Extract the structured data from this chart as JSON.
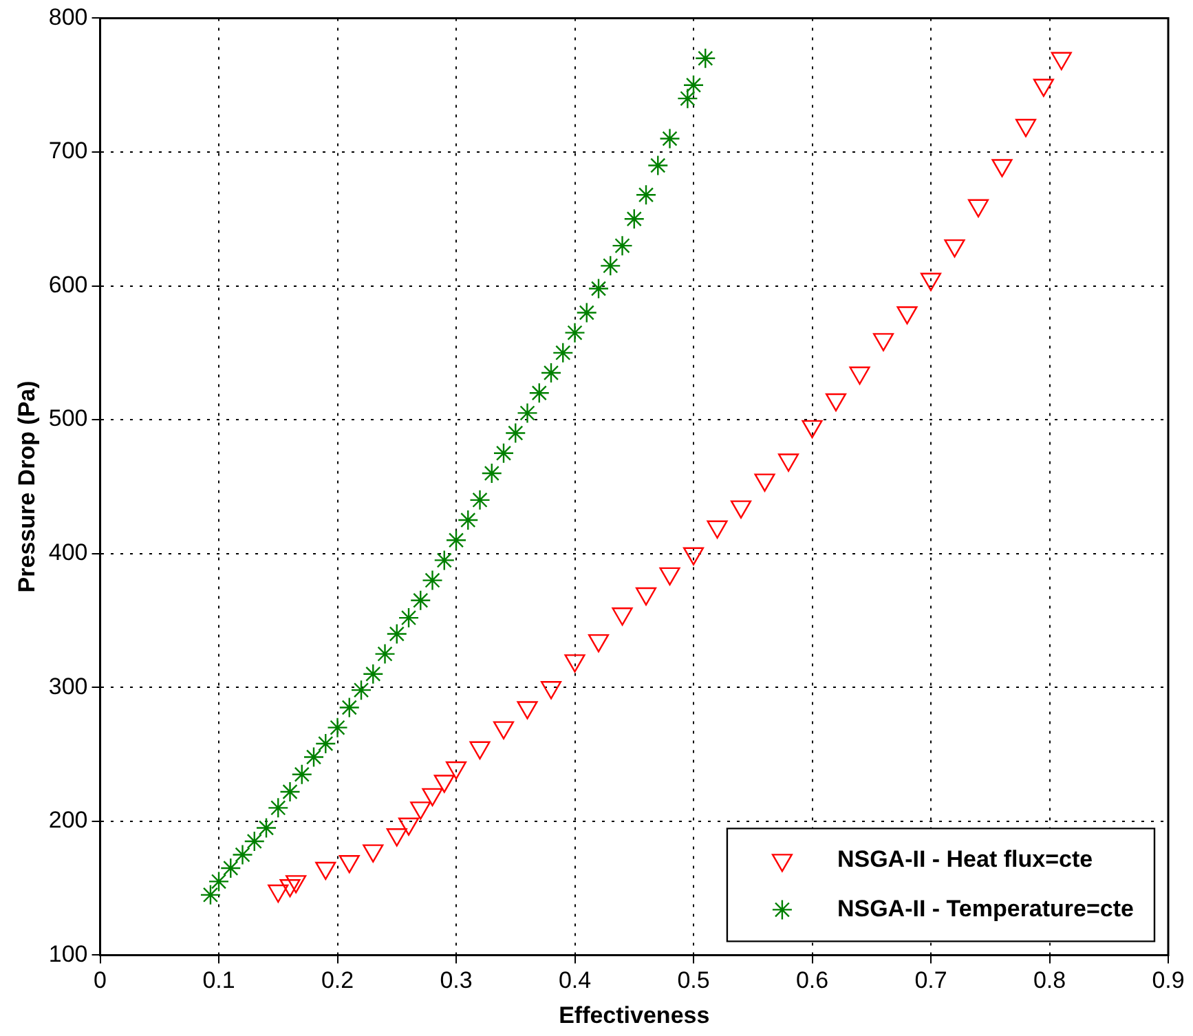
{
  "chart_data": {
    "type": "scatter",
    "xlabel": "Effectiveness",
    "ylabel": "Pressure Drop (Pa)",
    "xlim": [
      0,
      0.9
    ],
    "xticks": [
      0,
      0.1,
      0.2,
      0.3,
      0.4,
      0.5,
      0.6,
      0.7,
      0.8,
      0.9
    ],
    "ylim": [
      100,
      800
    ],
    "yticks": [
      100,
      200,
      300,
      400,
      500,
      600,
      700,
      800
    ],
    "grid": true,
    "legend": "bottom right",
    "series": [
      {
        "name": "NSGA-II - Heat flux=cte",
        "color": "#ff0000",
        "marker": "triangle",
        "x": [
          0.15,
          0.16,
          0.165,
          0.19,
          0.21,
          0.23,
          0.25,
          0.26,
          0.27,
          0.28,
          0.29,
          0.3,
          0.32,
          0.34,
          0.36,
          0.38,
          0.4,
          0.42,
          0.44,
          0.46,
          0.48,
          0.5,
          0.52,
          0.54,
          0.56,
          0.58,
          0.6,
          0.62,
          0.64,
          0.66,
          0.68,
          0.7,
          0.72,
          0.74,
          0.76,
          0.78,
          0.795,
          0.81
        ],
        "values": [
          148,
          152,
          155,
          165,
          170,
          178,
          190,
          198,
          210,
          220,
          230,
          240,
          255,
          270,
          285,
          300,
          320,
          335,
          355,
          370,
          385,
          400,
          420,
          435,
          455,
          470,
          495,
          515,
          535,
          560,
          580,
          605,
          630,
          660,
          690,
          720,
          750,
          770
        ]
      },
      {
        "name": "NSGA-II - Temperature=cte",
        "color": "#008000",
        "marker": "cross",
        "x": [
          0.093,
          0.1,
          0.11,
          0.12,
          0.13,
          0.14,
          0.15,
          0.16,
          0.17,
          0.18,
          0.19,
          0.2,
          0.21,
          0.22,
          0.23,
          0.24,
          0.25,
          0.26,
          0.27,
          0.28,
          0.29,
          0.3,
          0.31,
          0.32,
          0.33,
          0.34,
          0.35,
          0.36,
          0.37,
          0.38,
          0.39,
          0.4,
          0.41,
          0.42,
          0.43,
          0.44,
          0.45,
          0.46,
          0.47,
          0.48,
          0.495,
          0.5,
          0.51
        ],
        "values": [
          145,
          155,
          165,
          175,
          185,
          195,
          210,
          222,
          235,
          248,
          258,
          270,
          285,
          298,
          310,
          325,
          340,
          352,
          365,
          380,
          395,
          410,
          425,
          440,
          460,
          475,
          490,
          505,
          520,
          535,
          550,
          565,
          580,
          598,
          615,
          630,
          650,
          668,
          690,
          710,
          740,
          750,
          770
        ]
      }
    ]
  }
}
